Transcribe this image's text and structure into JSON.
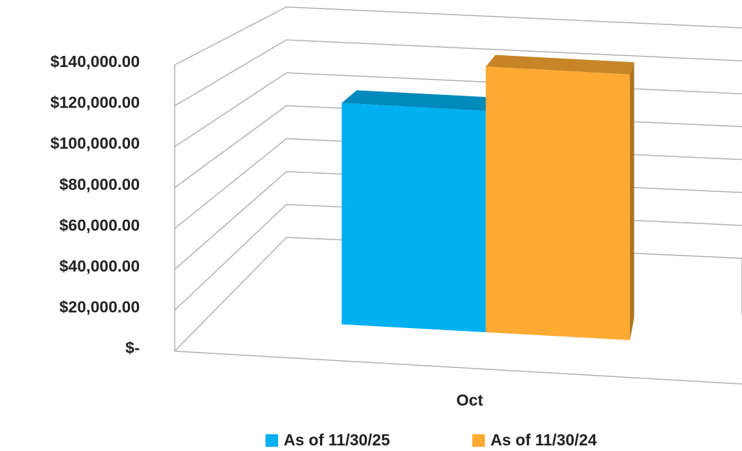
{
  "chart_data": {
    "type": "bar3d",
    "categories": [
      "Oct"
    ],
    "series": [
      {
        "name": "As of 11/30/25",
        "color": "#00b0f0",
        "values": [
          115000
        ]
      },
      {
        "name": "As of 11/30/24",
        "color": "#ffaa33",
        "values": [
          138000
        ]
      }
    ],
    "ylim": [
      0,
      140000
    ],
    "yticks": [
      {
        "value": 0,
        "label": "$-"
      },
      {
        "value": 20000,
        "label": "$20,000.00"
      },
      {
        "value": 40000,
        "label": "$40,000.00"
      },
      {
        "value": 60000,
        "label": "$60,000.00"
      },
      {
        "value": 80000,
        "label": "$80,000.00"
      },
      {
        "value": 100000,
        "label": "$100,000.00"
      },
      {
        "value": 120000,
        "label": "$120,000.00"
      },
      {
        "value": 140000,
        "label": "$140,000.00"
      }
    ],
    "grid": true,
    "legend": "bottom"
  }
}
